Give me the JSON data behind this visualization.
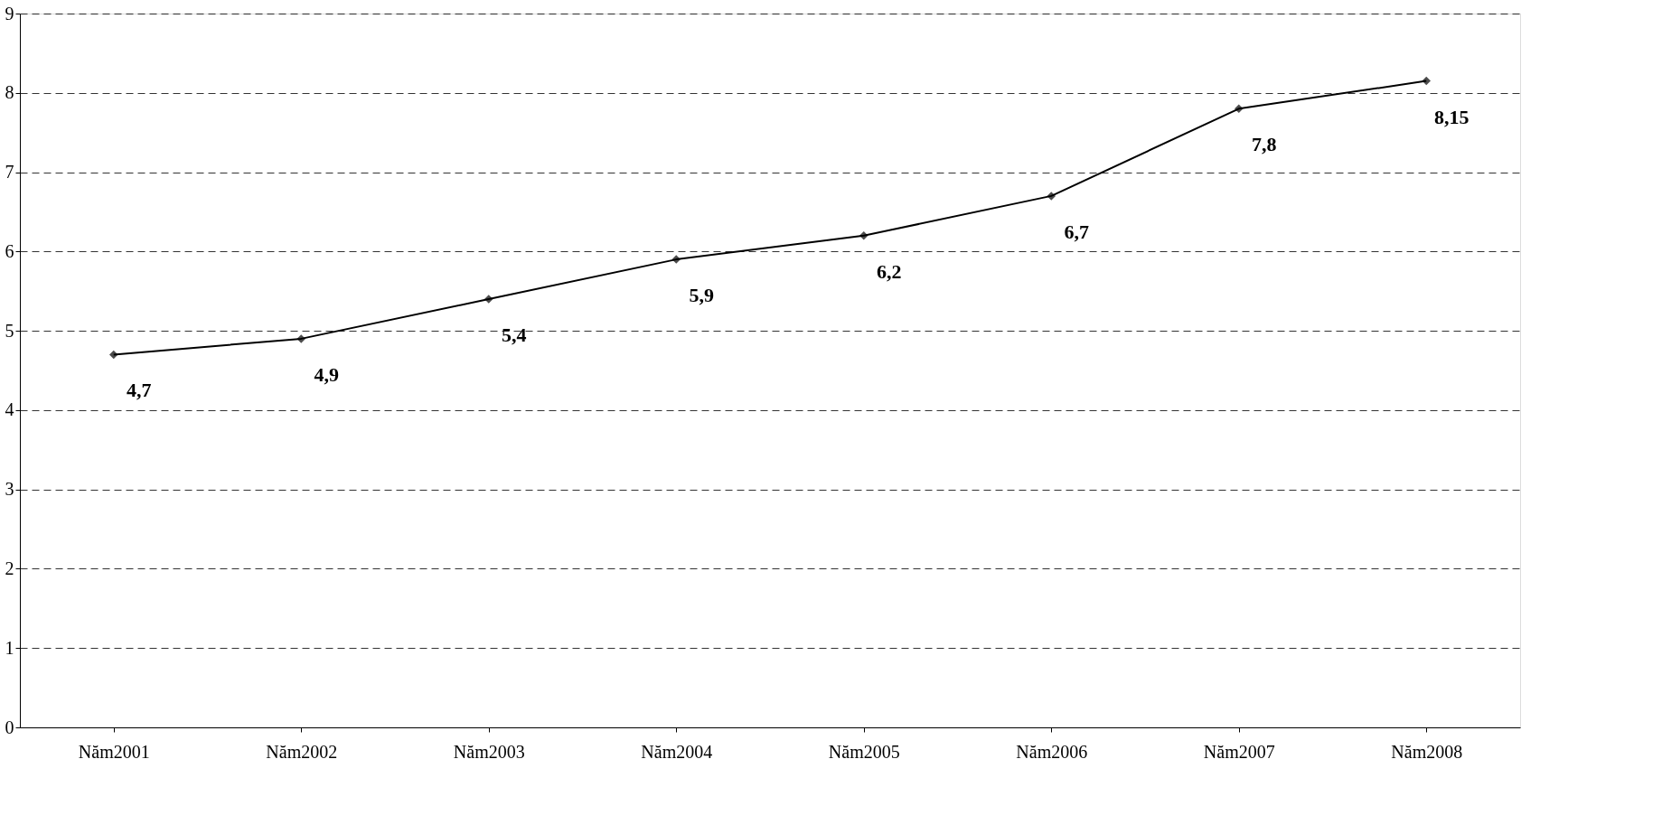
{
  "chart_data": {
    "type": "line",
    "categories": [
      "Năm2001",
      "Năm2002",
      "Năm2003",
      "Năm2004",
      "Năm2005",
      "Năm2006",
      "Năm2007",
      "Năm2008"
    ],
    "series": [
      {
        "color": "#000000",
        "values": [
          4.7,
          4.9,
          5.4,
          5.9,
          6.2,
          6.7,
          7.8,
          8.15
        ],
        "value_labels": [
          "4,7",
          "4,9",
          "5,4",
          "5,9",
          "6,2",
          "6,7",
          "7,8",
          "8,15"
        ]
      }
    ],
    "ylim": [
      0,
      9
    ],
    "yticks": [
      0,
      1,
      2,
      3,
      4,
      5,
      6,
      7,
      8,
      9
    ],
    "grid": "y",
    "marker": "diamond",
    "line_style": "solid"
  }
}
